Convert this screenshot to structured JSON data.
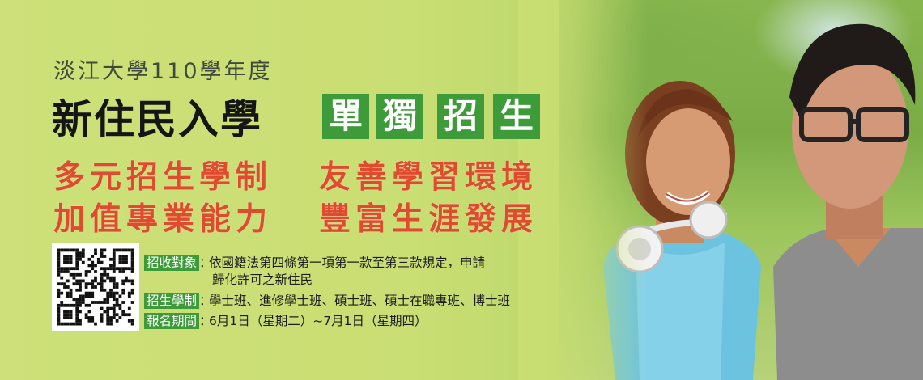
{
  "banner": {
    "subtitle": "淡江大學110學年度",
    "title": "新住民入學",
    "title_tags": [
      "單",
      "獨",
      "招",
      "生"
    ],
    "slogans": [
      "多元招生學制",
      "友善學習環境",
      "加值專業能力",
      "豐富生涯發展"
    ],
    "info": [
      {
        "label": "招收對象",
        "text": "依國籍法第四條第一項第一款至第三款規定，申請",
        "text2": "歸化許可之新住民"
      },
      {
        "label": "招生學制",
        "text": "學士班、進修學士班、碩士班、碩士在職專班、博士班"
      },
      {
        "label": "報名期間",
        "text": "6月1日（星期二）~7月1日（星期四）"
      }
    ],
    "colors": {
      "background": "#c9de73",
      "tag_green": "#3d9b3a",
      "slogan_red": "#e14b2d"
    },
    "icons": {
      "qr": "qr-code-icon"
    }
  }
}
